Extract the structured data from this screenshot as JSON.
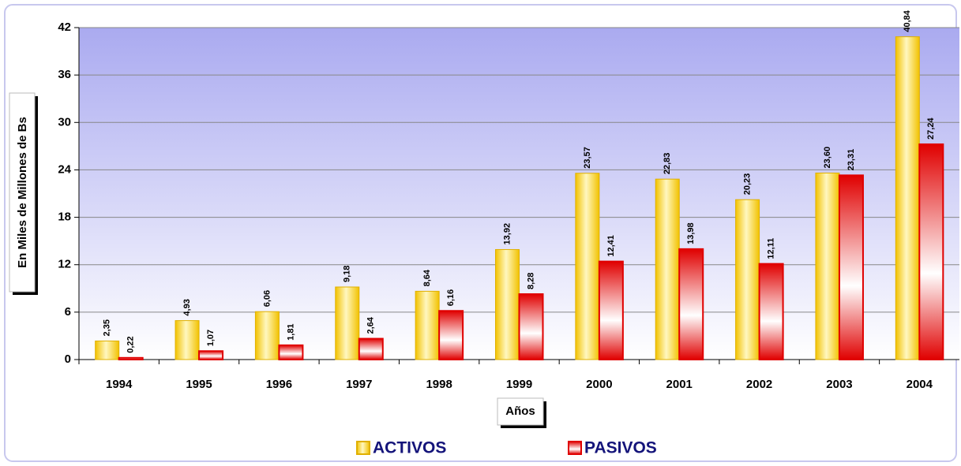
{
  "chart_data": {
    "type": "bar",
    "categories": [
      "1994",
      "1995",
      "1996",
      "1997",
      "1998",
      "1999",
      "2000",
      "2001",
      "2002",
      "2003",
      "2004"
    ],
    "series": [
      {
        "name": "ACTIVOS",
        "color": "#f2c200",
        "values": [
          2.35,
          4.93,
          6.06,
          9.18,
          8.64,
          13.92,
          23.57,
          22.83,
          20.23,
          23.6,
          40.84
        ],
        "value_labels": [
          "2,35",
          "4,93",
          "6,06",
          "9,18",
          "8,64",
          "13,92",
          "23,57",
          "22,83",
          "20,23",
          "23,60",
          "40,84"
        ]
      },
      {
        "name": "PASIVOS",
        "color": "#e00000",
        "values": [
          0.22,
          1.07,
          1.81,
          2.64,
          6.16,
          8.28,
          12.41,
          13.98,
          12.11,
          23.31,
          27.24
        ],
        "value_labels": [
          "0,22",
          "1,07",
          "1,81",
          "2,64",
          "6,16",
          "8,28",
          "12,41",
          "13,98",
          "12,11",
          "23,31",
          "27,24"
        ]
      }
    ],
    "xlabel": "Años",
    "ylabel": "En Miles de Millones de Bs",
    "ylim": [
      0,
      42
    ],
    "yticks": [
      0,
      6,
      12,
      18,
      24,
      30,
      36,
      42
    ],
    "grid": true,
    "legend": "bottom"
  }
}
